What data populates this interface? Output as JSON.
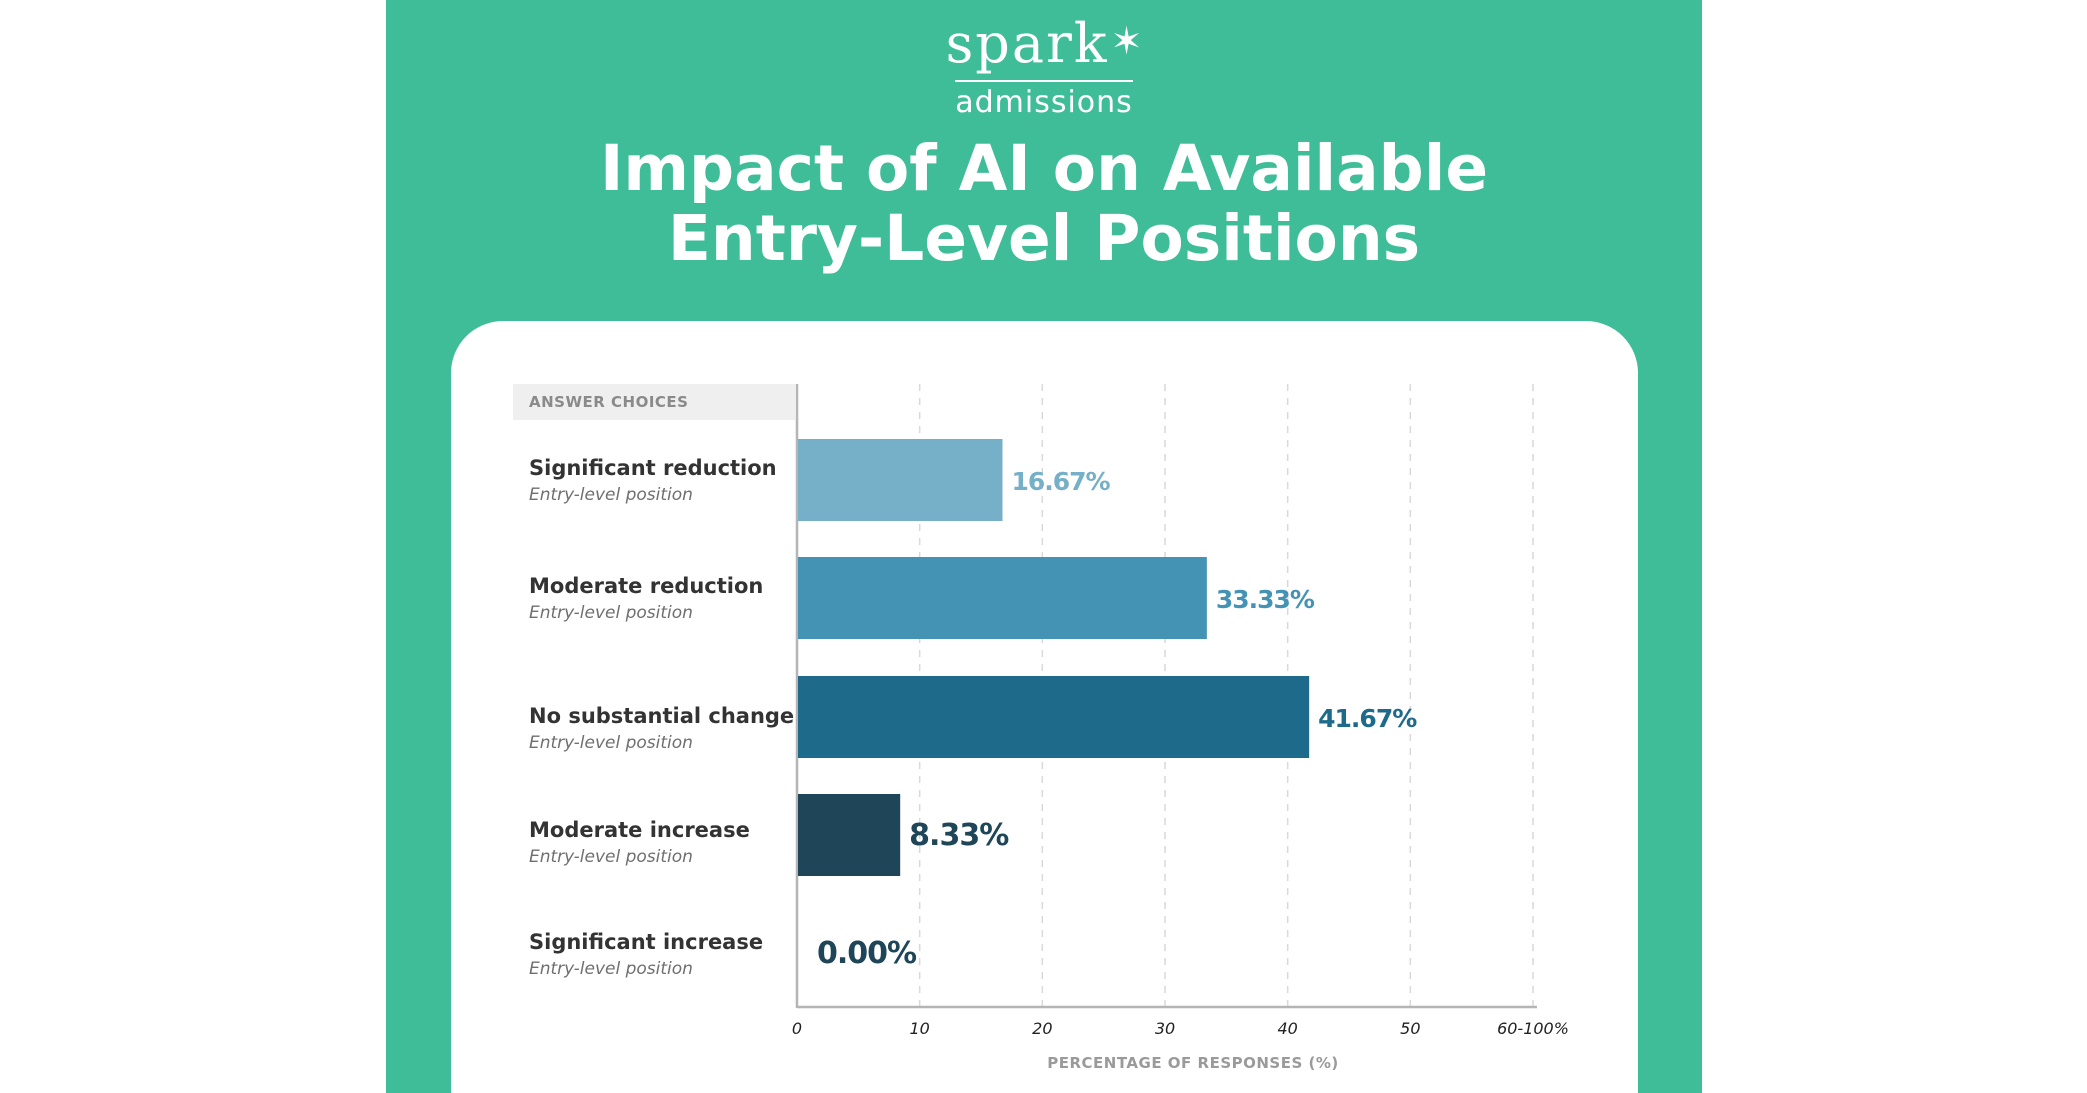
{
  "logo": {
    "word": "spark",
    "star": "✶",
    "sub": "admissions"
  },
  "title": {
    "line1": "Impact of AI on Available",
    "line2": "Entry-Level Positions"
  },
  "colors": {
    "background": "#3ebd98",
    "card": "#ffffff"
  },
  "chart_data": {
    "type": "bar",
    "orientation": "horizontal",
    "title": "Impact of AI on Available Entry-Level Positions",
    "category_header": "ANSWER CHOICES",
    "categories": [
      "Significant reduction",
      "Moderate reduction",
      "No substantial change",
      "Moderate increase",
      "Significant increase"
    ],
    "category_sublabels": [
      "Entry-level position",
      "Entry-level position",
      "Entry-level position",
      "Entry-level position",
      "Entry-level position"
    ],
    "values": [
      16.67,
      33.33,
      41.67,
      8.33,
      0.0
    ],
    "value_labels": [
      "16.67%",
      "33.33%",
      "41.67%",
      "8.33%",
      "0.00%"
    ],
    "bar_colors": [
      "#75afc8",
      "#4593b4",
      "#1e6a8a",
      "#1e4558",
      "#1e4558"
    ],
    "xlabel": "PERCENTAGE OF RESPONSES (%)",
    "xticks": [
      "0",
      "10",
      "20",
      "30",
      "40",
      "50",
      "60-100%"
    ],
    "xtick_values": [
      0,
      10,
      20,
      30,
      40,
      50,
      60
    ],
    "xlim": [
      0,
      60
    ],
    "grid": true,
    "grid_style": "dashed vertical"
  }
}
